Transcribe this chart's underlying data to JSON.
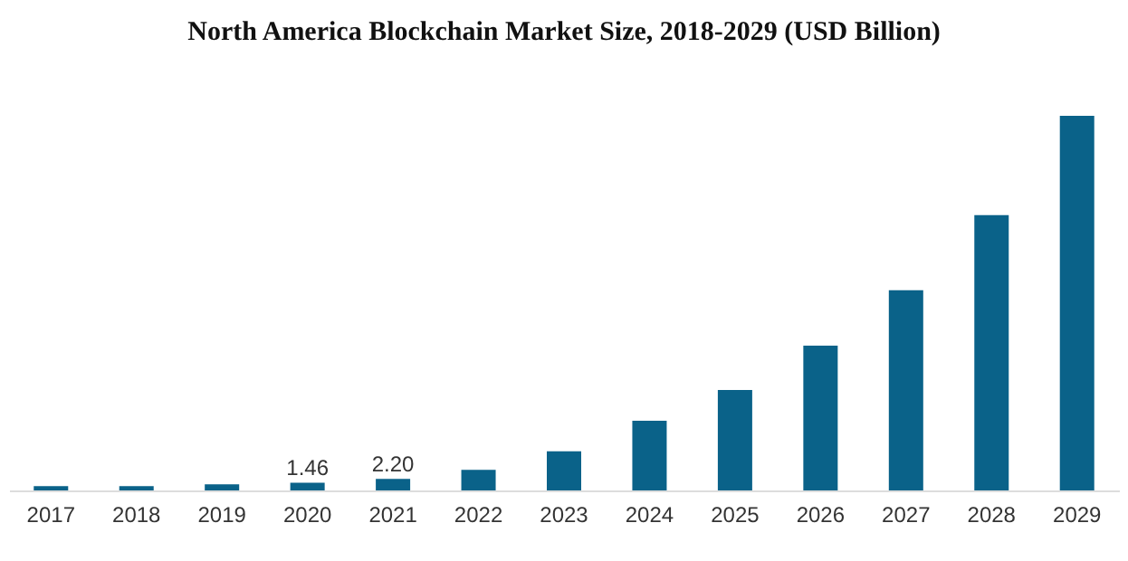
{
  "chart_data": {
    "type": "bar",
    "title": "North America Blockchain Market Size, 2018-2029 (USD Billion)",
    "categories": [
      "2017",
      "2018",
      "2019",
      "2020",
      "2021",
      "2022",
      "2023",
      "2024",
      "2025",
      "2026",
      "2027",
      "2028",
      "2029"
    ],
    "values": [
      0.8,
      0.8,
      1.14,
      1.46,
      2.2,
      3.9,
      7.4,
      13.2,
      19.0,
      27.4,
      37.9,
      52.1,
      70.9
    ],
    "value_labels": [
      null,
      null,
      null,
      "1.46",
      "2.20",
      null,
      null,
      null,
      null,
      null,
      null,
      null,
      null
    ],
    "color": "#0a6289",
    "grid": false,
    "tick_labels": "x"
  }
}
